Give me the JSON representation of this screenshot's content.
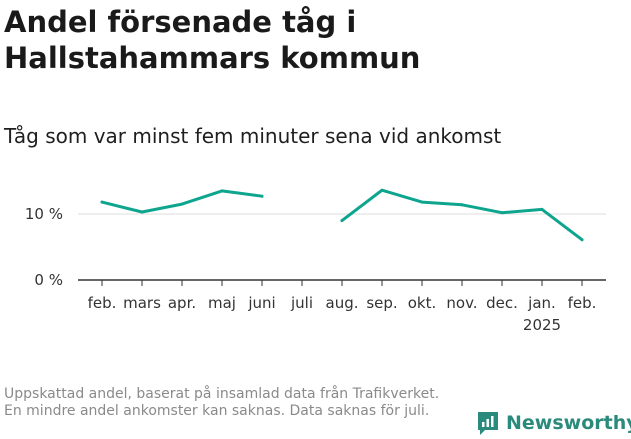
{
  "title": "Andel försenade tåg i Hallstahammars kommun",
  "subtitle": "Tåg som var minst fem minuter sena vid ankomst",
  "footnote": "Uppskattad andel, baserat på insamlad data från Trafikverket. En mindre andel ankomster kan saknas. Data saknas för juli.",
  "brand": "Newsworthy",
  "colors": {
    "line": "#0ea58f",
    "grid": "#dddddd",
    "axis": "#333333",
    "brand": "#2a8a7c"
  },
  "chart_data": {
    "type": "line",
    "title": "Andel försenade tåg i Hallstahammars kommun",
    "ylabel": "",
    "xlabel": "",
    "ylim": [
      0,
      15
    ],
    "yticks": [
      0,
      10
    ],
    "ytick_labels": [
      "0 %",
      "10 %"
    ],
    "categories": [
      "feb.",
      "mars",
      "apr.",
      "maj",
      "juni",
      "juli",
      "aug.",
      "sep.",
      "okt.",
      "nov.",
      "dec.",
      "jan.",
      "feb."
    ],
    "year_label": {
      "index": 11,
      "text": "2025"
    },
    "series": [
      {
        "name": "Andel försenade tåg (%)",
        "values": [
          11.8,
          10.3,
          11.5,
          13.5,
          12.7,
          null,
          9.0,
          13.6,
          11.8,
          11.4,
          10.2,
          10.7,
          6.1
        ]
      }
    ]
  }
}
